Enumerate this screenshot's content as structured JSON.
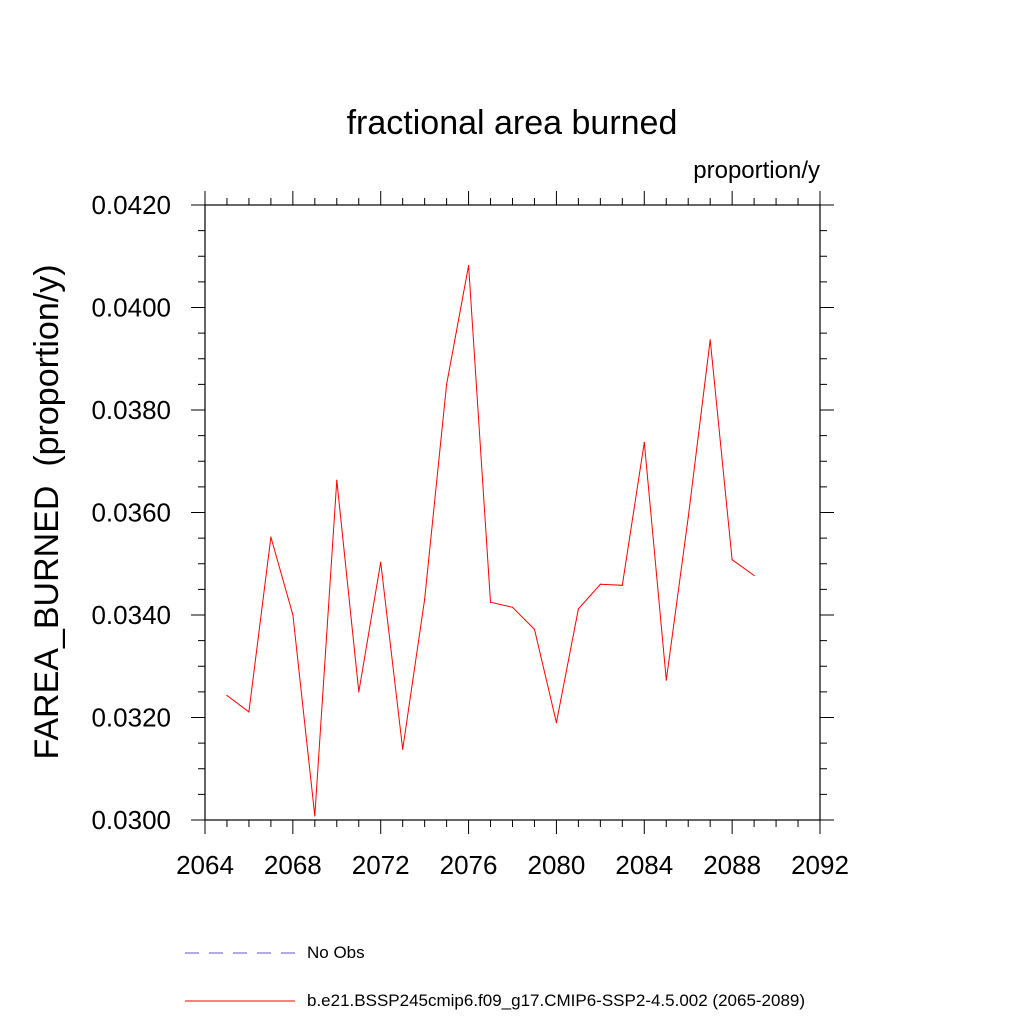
{
  "chart_data": {
    "type": "line",
    "title": "fractional area burned",
    "units_label": "proportion/y",
    "xlabel": "",
    "ylabel": "FAREA_BURNED  (proportion/y)",
    "xlim": [
      2064,
      2092
    ],
    "ylim": [
      0.03,
      0.042
    ],
    "x_ticks": [
      "2064",
      "2068",
      "2072",
      "2076",
      "2080",
      "2084",
      "2088",
      "2092"
    ],
    "y_ticks": [
      "0.0300",
      "0.0320",
      "0.0340",
      "0.0360",
      "0.0380",
      "0.0400",
      "0.0420"
    ],
    "grid": false,
    "legend_position": "bottom",
    "series": [
      {
        "name": "b.e21.BSSP245cmip6.f09_g17.CMIP6-SSP2-4.5.002 (2065-2089)",
        "color": "#ff0000",
        "x": [
          2065,
          2066,
          2067,
          2068,
          2069,
          2070,
          2071,
          2072,
          2073,
          2074,
          2075,
          2076,
          2077,
          2078,
          2079,
          2080,
          2081,
          2082,
          2083,
          2084,
          2085,
          2086,
          2087,
          2088,
          2089
        ],
        "y": [
          0.03243,
          0.03211,
          0.03552,
          0.034,
          0.03008,
          0.03663,
          0.0325,
          0.03503,
          0.03138,
          0.0343,
          0.0385,
          0.04082,
          0.03425,
          0.03415,
          0.03372,
          0.0319,
          0.03412,
          0.0346,
          0.03458,
          0.03737,
          0.03273,
          0.0359,
          0.03937,
          0.03508,
          0.03477
        ]
      }
    ],
    "legend": [
      {
        "label": "No Obs",
        "color": "#6a5acd",
        "style": "dashed"
      },
      {
        "label": "b.e21.BSSP245cmip6.f09_g17.CMIP6-SSP2-4.5.002 (2065-2089)",
        "color": "#ff0000",
        "style": "solid"
      }
    ]
  }
}
